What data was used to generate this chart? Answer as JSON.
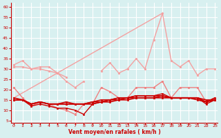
{
  "xlabel": "Vent moyen/en rafales ( km/h )",
  "background_color": "#d8f0f0",
  "grid_color": "#ffffff",
  "x": [
    0,
    1,
    2,
    3,
    4,
    5,
    6,
    7,
    8,
    9,
    10,
    11,
    12,
    13,
    14,
    15,
    16,
    17,
    18,
    19,
    20,
    21,
    22,
    23
  ],
  "series": [
    {
      "name": "trend_diagonal",
      "color": "#f4a0a0",
      "lw": 1.0,
      "marker": null,
      "ms": 0,
      "y": [
        16,
        null,
        null,
        null,
        null,
        null,
        null,
        null,
        null,
        null,
        null,
        null,
        null,
        null,
        null,
        null,
        null,
        57,
        null,
        null,
        null,
        null,
        null,
        null
      ],
      "connect_endpoints": true
    },
    {
      "name": "rafales_main",
      "color": "#f4a0a0",
      "lw": 1.0,
      "marker": "o",
      "ms": 2.0,
      "y": [
        32,
        34,
        30,
        31,
        31,
        28,
        24,
        21,
        24,
        null,
        29,
        33,
        28,
        30,
        35,
        30,
        44,
        57,
        34,
        31,
        34,
        27,
        30,
        30
      ]
    },
    {
      "name": "rafales_upper",
      "color": "#f4a0a0",
      "lw": 1.0,
      "marker": "o",
      "ms": 2.0,
      "y": [
        31,
        31,
        30,
        30,
        29,
        28,
        26,
        null,
        null,
        null,
        null,
        null,
        null,
        null,
        null,
        null,
        null,
        null,
        null,
        null,
        null,
        null,
        null,
        null
      ]
    },
    {
      "name": "moyen_medium",
      "color": "#f08080",
      "lw": 1.0,
      "marker": "o",
      "ms": 2.0,
      "y": [
        21,
        16,
        12,
        14,
        13,
        11,
        10,
        8,
        13,
        13,
        21,
        19,
        16,
        16,
        21,
        21,
        21,
        24,
        16,
        21,
        21,
        21,
        14,
        16
      ]
    },
    {
      "name": "line_flat1",
      "color": "#cc0000",
      "lw": 1.2,
      "marker": "o",
      "ms": 1.8,
      "y": [
        16,
        15,
        13,
        14,
        13,
        13,
        13,
        13,
        13,
        13,
        14,
        14,
        15,
        15,
        16,
        16,
        16,
        17,
        16,
        16,
        16,
        16,
        15,
        15
      ]
    },
    {
      "name": "line_flat2",
      "color": "#cc0000",
      "lw": 1.2,
      "marker": "o",
      "ms": 1.8,
      "y": [
        15,
        15,
        13,
        14,
        13,
        13,
        13,
        13,
        13,
        14,
        14,
        15,
        15,
        16,
        16,
        16,
        16,
        16,
        16,
        16,
        16,
        15,
        14,
        15
      ]
    },
    {
      "name": "line_flat3",
      "color": "#cc0000",
      "lw": 1.2,
      "marker": "o",
      "ms": 1.8,
      "y": [
        15,
        15,
        13,
        14,
        13,
        13,
        14,
        13,
        13,
        14,
        15,
        15,
        16,
        16,
        17,
        17,
        17,
        17,
        16,
        16,
        16,
        16,
        14,
        16
      ]
    },
    {
      "name": "line_varying",
      "color": "#cc0000",
      "lw": 1.0,
      "marker": "o",
      "ms": 1.8,
      "y": [
        15,
        15,
        12,
        13,
        12,
        11,
        11,
        10,
        8,
        13,
        14,
        15,
        16,
        16,
        17,
        17,
        17,
        18,
        16,
        16,
        16,
        16,
        13,
        15
      ]
    }
  ],
  "yticks": [
    5,
    10,
    15,
    20,
    25,
    30,
    35,
    40,
    45,
    50,
    55,
    60
  ],
  "ylim": [
    4,
    62
  ],
  "xlim": [
    -0.3,
    23.3
  ],
  "xticks": [
    0,
    1,
    2,
    3,
    4,
    5,
    6,
    7,
    8,
    9,
    10,
    11,
    12,
    13,
    14,
    15,
    16,
    17,
    18,
    19,
    20,
    21,
    22,
    23
  ],
  "arrow_color": "#cc0000",
  "tick_label_color": "#cc0000",
  "xlabel_color": "#cc0000"
}
